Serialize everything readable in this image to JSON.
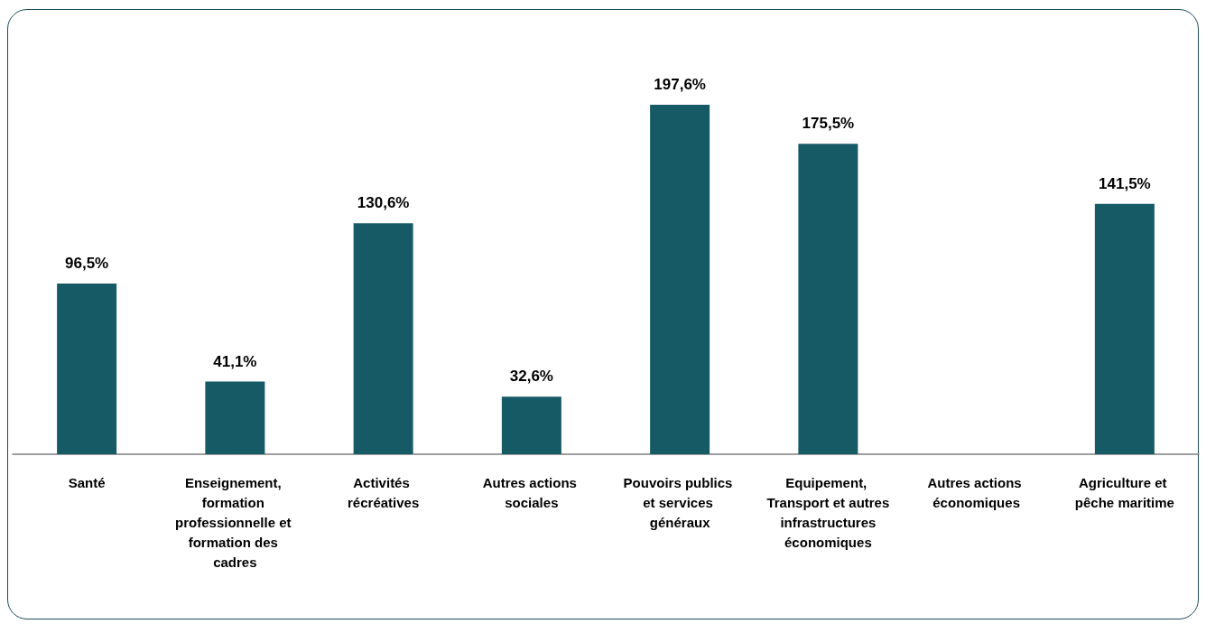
{
  "chart_data": {
    "type": "bar",
    "categories": [
      "Santé",
      "Enseignement, formation professionnelle et formation des cadres",
      "Activités récréatives",
      "Autres actions sociales",
      "Pouvoirs publics et services généraux",
      "Equipement, Transport et autres infrastructures économiques",
      "Autres actions économiques",
      "Agriculture et pêche maritime"
    ],
    "values": [
      96.5,
      41.1,
      130.6,
      32.6,
      197.6,
      175.5,
      null,
      141.5
    ],
    "value_labels": [
      "96,5%",
      "41,1%",
      "130,6%",
      "32,6%",
      "197,6%",
      "175,5%",
      null,
      "141,5%"
    ],
    "color": "#165a66",
    "grid": false
  }
}
